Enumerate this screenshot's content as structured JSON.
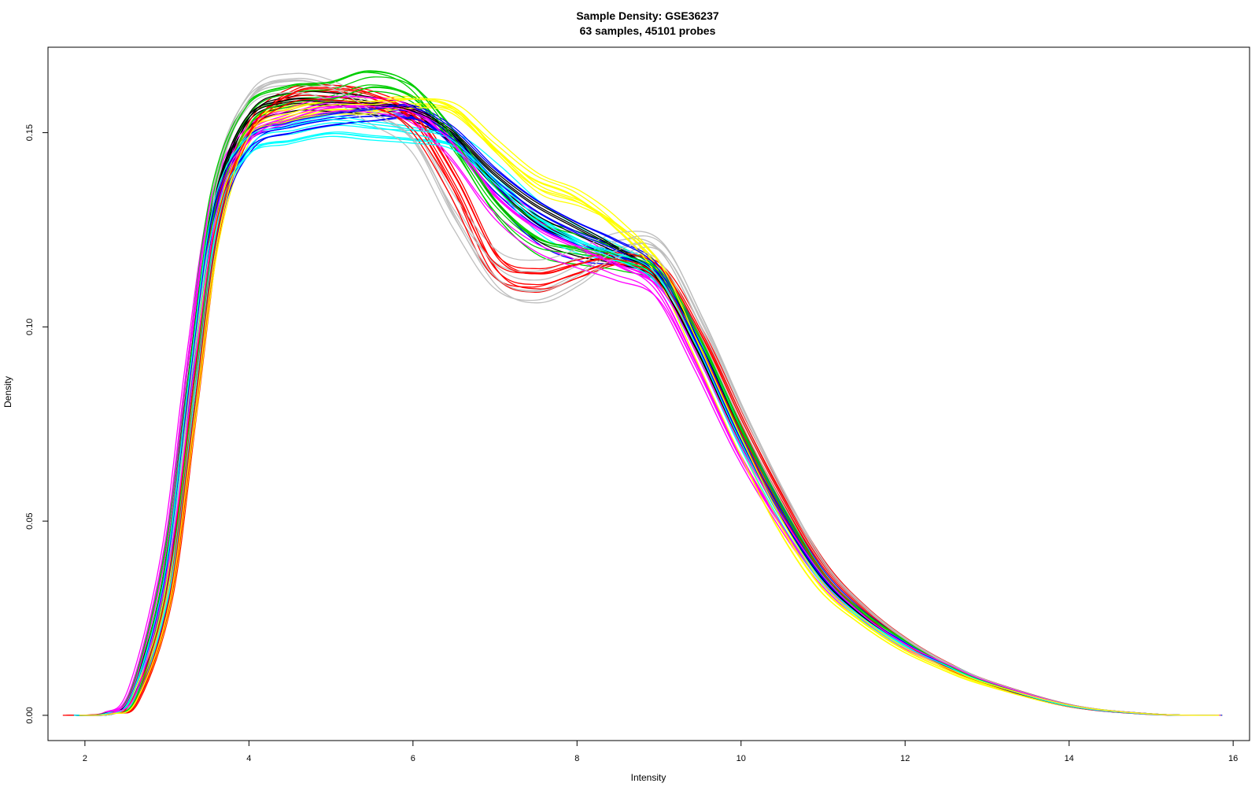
{
  "chart_data": {
    "type": "line",
    "title": "Sample Density: GSE36237",
    "subtitle": "63 samples, 45101 probes",
    "xlabel": "Intensity",
    "ylabel": "Density",
    "xlim": [
      1.55,
      16.2
    ],
    "ylim": [
      -0.0065,
      0.172
    ],
    "x_ticks": [
      "2",
      "4",
      "6",
      "8",
      "10",
      "12",
      "14",
      "16"
    ],
    "x_tick_values": [
      2,
      4,
      6,
      8,
      10,
      12,
      14,
      16
    ],
    "y_ticks": [
      "0.00",
      "0.05",
      "0.10",
      "0.15"
    ],
    "y_tick_values": [
      0.0,
      0.05,
      0.1,
      0.15
    ],
    "grid": false,
    "legend": "none",
    "sample_count": 63,
    "probe_count": 45101,
    "palette": [
      "#000000",
      "#ff0000",
      "#00cd00",
      "#0000ff",
      "#00ffff",
      "#ff00ff",
      "#ffff00",
      "#bebebe"
    ],
    "representative_series": [
      {
        "color": "#000000",
        "x": [
          1.9,
          2.3,
          2.6,
          3.0,
          3.3,
          3.6,
          4.0,
          4.5,
          5.0,
          5.5,
          6.0,
          6.5,
          7.0,
          7.5,
          8.0,
          8.5,
          9.0,
          9.5,
          10.0,
          10.5,
          11.0,
          11.5,
          12.0,
          12.5,
          13.0,
          14.0,
          15.0,
          15.8
        ],
        "y": [
          0.0,
          0.0005,
          0.005,
          0.035,
          0.085,
          0.13,
          0.153,
          0.158,
          0.158,
          0.157,
          0.155,
          0.148,
          0.136,
          0.127,
          0.122,
          0.118,
          0.112,
          0.094,
          0.072,
          0.052,
          0.036,
          0.026,
          0.019,
          0.013,
          0.0085,
          0.0025,
          0.0003,
          0.0
        ]
      },
      {
        "color": "#ff0000",
        "x": [
          1.8,
          2.3,
          2.6,
          3.0,
          3.3,
          3.6,
          4.0,
          4.5,
          5.0,
          5.5,
          6.0,
          6.5,
          7.0,
          7.5,
          8.0,
          8.5,
          9.0,
          9.5,
          10.0,
          10.5,
          11.0,
          11.5,
          12.0,
          12.5,
          13.0,
          14.0,
          15.0,
          15.8
        ],
        "y": [
          0.0,
          0.0005,
          0.004,
          0.03,
          0.078,
          0.126,
          0.151,
          0.16,
          0.161,
          0.159,
          0.153,
          0.136,
          0.115,
          0.111,
          0.114,
          0.117,
          0.114,
          0.097,
          0.075,
          0.055,
          0.038,
          0.027,
          0.019,
          0.013,
          0.0085,
          0.0025,
          0.0003,
          0.0
        ]
      },
      {
        "color": "#00cd00",
        "x": [
          1.9,
          2.3,
          2.6,
          3.0,
          3.3,
          3.6,
          4.0,
          4.5,
          5.0,
          5.5,
          6.0,
          6.5,
          7.0,
          7.5,
          8.0,
          8.5,
          9.0,
          9.5,
          10.0,
          10.5,
          11.0,
          11.5,
          12.0,
          12.5,
          13.0,
          14.0,
          15.0,
          15.8
        ],
        "y": [
          0.0,
          0.0006,
          0.0055,
          0.038,
          0.088,
          0.133,
          0.154,
          0.159,
          0.16,
          0.163,
          0.16,
          0.148,
          0.133,
          0.124,
          0.121,
          0.118,
          0.113,
          0.096,
          0.073,
          0.053,
          0.036,
          0.026,
          0.019,
          0.013,
          0.0085,
          0.0025,
          0.0003,
          0.0
        ]
      },
      {
        "color": "#0000ff",
        "x": [
          1.9,
          2.3,
          2.6,
          3.0,
          3.3,
          3.6,
          4.0,
          4.5,
          5.0,
          5.5,
          6.0,
          6.5,
          7.0,
          7.5,
          8.0,
          8.5,
          9.0,
          9.5,
          10.0,
          10.5,
          11.0,
          11.5,
          12.0,
          12.5,
          13.0,
          14.0,
          15.0,
          15.8
        ],
        "y": [
          0.0,
          0.0005,
          0.005,
          0.034,
          0.084,
          0.129,
          0.148,
          0.152,
          0.154,
          0.155,
          0.155,
          0.148,
          0.136,
          0.127,
          0.122,
          0.119,
          0.114,
          0.095,
          0.072,
          0.052,
          0.036,
          0.026,
          0.019,
          0.013,
          0.0085,
          0.0025,
          0.0003,
          0.0
        ]
      },
      {
        "color": "#00ffff",
        "x": [
          1.9,
          2.3,
          2.6,
          3.0,
          3.3,
          3.6,
          4.0,
          4.5,
          5.0,
          5.5,
          6.0,
          6.5,
          7.0,
          7.5,
          8.0,
          8.5,
          9.0,
          9.5,
          10.0,
          10.5,
          11.0,
          11.5,
          12.0,
          12.5,
          13.0,
          14.0,
          15.0,
          15.8
        ],
        "y": [
          0.0,
          0.0005,
          0.005,
          0.035,
          0.085,
          0.13,
          0.147,
          0.15,
          0.152,
          0.151,
          0.15,
          0.148,
          0.139,
          0.129,
          0.123,
          0.119,
          0.113,
          0.094,
          0.071,
          0.051,
          0.035,
          0.025,
          0.018,
          0.013,
          0.0085,
          0.0025,
          0.0003,
          0.0
        ]
      },
      {
        "color": "#ff00ff",
        "x": [
          1.9,
          2.3,
          2.6,
          3.0,
          3.3,
          3.6,
          4.0,
          4.5,
          5.0,
          5.5,
          6.0,
          6.5,
          7.0,
          7.5,
          8.0,
          8.5,
          9.0,
          9.5,
          10.0,
          10.5,
          11.0,
          11.5,
          12.0,
          12.5,
          13.0,
          14.0,
          15.0,
          15.8
        ],
        "y": [
          0.0,
          0.0007,
          0.007,
          0.042,
          0.092,
          0.134,
          0.15,
          0.155,
          0.158,
          0.158,
          0.156,
          0.147,
          0.134,
          0.126,
          0.121,
          0.116,
          0.11,
          0.09,
          0.068,
          0.05,
          0.035,
          0.025,
          0.018,
          0.013,
          0.0085,
          0.0025,
          0.0003,
          0.0
        ]
      },
      {
        "color": "#ffff00",
        "x": [
          1.9,
          2.3,
          2.6,
          3.0,
          3.3,
          3.6,
          4.0,
          4.5,
          5.0,
          5.5,
          6.0,
          6.5,
          7.0,
          7.5,
          8.0,
          8.5,
          9.0,
          9.5,
          10.0,
          10.5,
          11.0,
          11.5,
          12.0,
          12.5,
          13.0,
          14.0,
          15.0,
          15.8
        ],
        "y": [
          0.0,
          0.0004,
          0.004,
          0.029,
          0.076,
          0.124,
          0.15,
          0.155,
          0.157,
          0.157,
          0.158,
          0.156,
          0.146,
          0.137,
          0.133,
          0.126,
          0.115,
          0.093,
          0.07,
          0.049,
          0.033,
          0.024,
          0.017,
          0.012,
          0.008,
          0.0025,
          0.0003,
          0.0
        ]
      },
      {
        "color": "#bebebe",
        "x": [
          1.9,
          2.3,
          2.6,
          3.0,
          3.3,
          3.6,
          4.0,
          4.5,
          5.0,
          5.5,
          6.0,
          6.5,
          7.0,
          7.5,
          8.0,
          8.5,
          9.0,
          9.5,
          10.0,
          10.5,
          11.0,
          11.5,
          12.0,
          12.5,
          13.0,
          14.0,
          15.0,
          15.8
        ],
        "y": [
          0.0,
          0.0006,
          0.006,
          0.04,
          0.092,
          0.138,
          0.158,
          0.162,
          0.16,
          0.154,
          0.147,
          0.128,
          0.113,
          0.11,
          0.114,
          0.12,
          0.119,
          0.1,
          0.077,
          0.056,
          0.038,
          0.027,
          0.019,
          0.013,
          0.0085,
          0.0025,
          0.0003,
          0.0
        ]
      }
    ]
  }
}
